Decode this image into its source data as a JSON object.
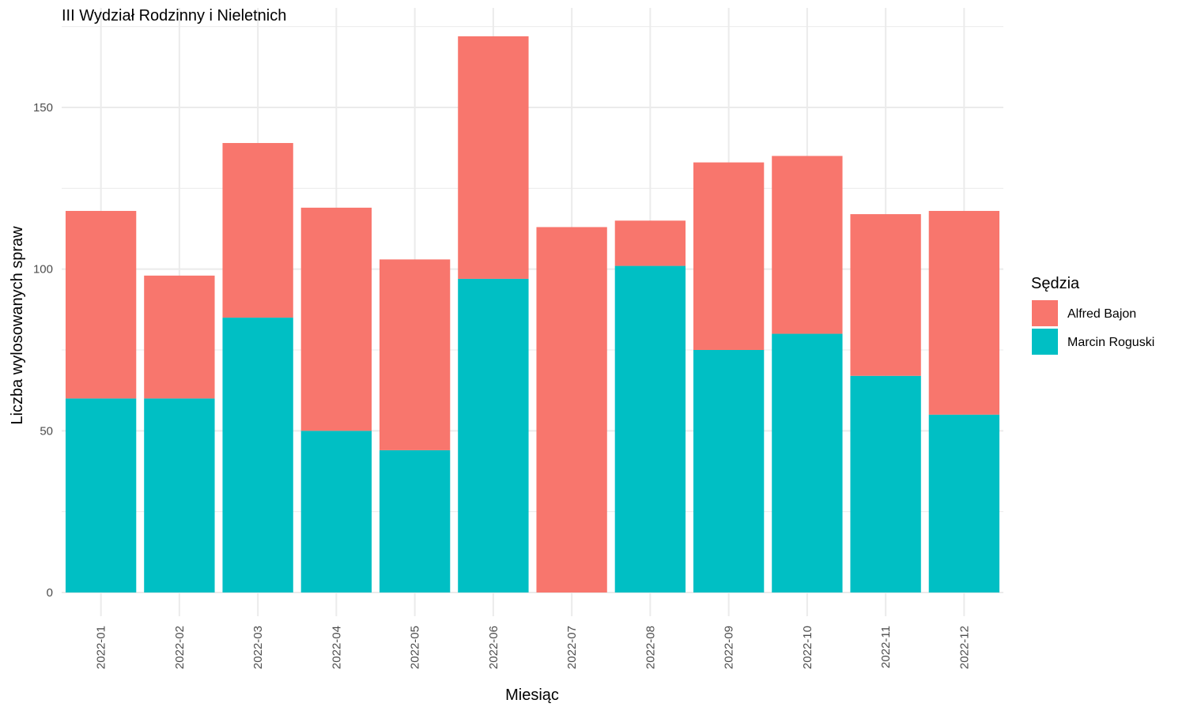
{
  "chart_data": {
    "type": "bar",
    "stacked": true,
    "title": "III Wydział Rodzinny i Nieletnich",
    "xlabel": "Miesiąc",
    "ylabel": "Liczba wylosowanych spraw",
    "ylim": [
      0,
      175
    ],
    "yticks": [
      0,
      50,
      100,
      150
    ],
    "grid": true,
    "legend_position": "right",
    "legend_title": "Sędzia",
    "categories": [
      "2022-01",
      "2022-02",
      "2022-03",
      "2022-04",
      "2022-05",
      "2022-06",
      "2022-07",
      "2022-08",
      "2022-09",
      "2022-10",
      "2022-11",
      "2022-12"
    ],
    "series": [
      {
        "name": "Marcin Roguski",
        "color": "#00BFC4",
        "values": [
          60,
          60,
          85,
          50,
          44,
          97,
          0,
          101,
          75,
          80,
          67,
          55
        ]
      },
      {
        "name": "Alfred Bajon",
        "color": "#F8766D",
        "values": [
          58,
          38,
          54,
          69,
          59,
          75,
          113,
          14,
          58,
          55,
          50,
          63
        ]
      }
    ],
    "legend_order": [
      "Alfred Bajon",
      "Marcin Roguski"
    ]
  }
}
